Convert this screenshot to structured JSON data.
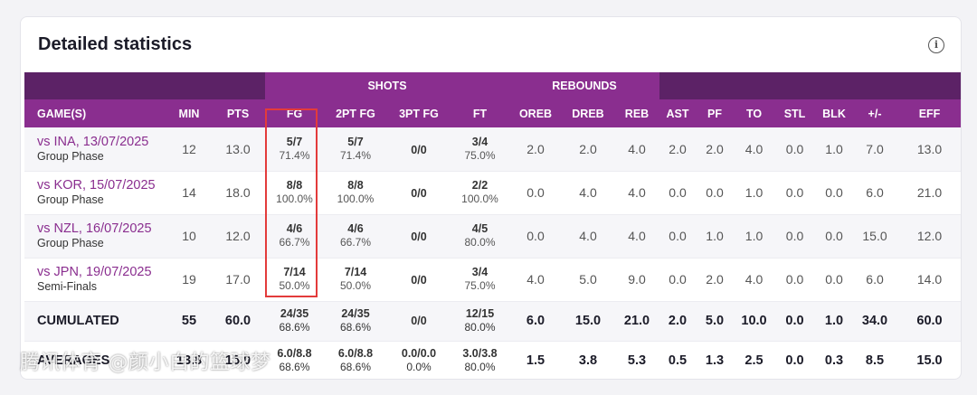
{
  "title": "Detailed statistics",
  "info_glyph": "i",
  "groups": {
    "shots": "SHOTS",
    "rebounds": "REBOUNDS"
  },
  "columns": [
    "GAME(S)",
    "MIN",
    "PTS",
    "FG",
    "2PT FG",
    "3PT FG",
    "FT",
    "OREB",
    "DREB",
    "REB",
    "AST",
    "PF",
    "TO",
    "STL",
    "BLK",
    "+/-",
    "EFF"
  ],
  "games": [
    {
      "name": "vs INA, 13/07/2025",
      "phase": "Group Phase",
      "min": "12",
      "pts": "13.0",
      "fg": "5/7",
      "fg_pct": "71.4%",
      "fg2": "5/7",
      "fg2_pct": "71.4%",
      "fg3": "0/0",
      "ft": "3/4",
      "ft_pct": "75.0%",
      "oreb": "2.0",
      "dreb": "2.0",
      "reb": "4.0",
      "ast": "2.0",
      "pf": "2.0",
      "to": "4.0",
      "stl": "0.0",
      "blk": "1.0",
      "pm": "7.0",
      "eff": "13.0"
    },
    {
      "name": "vs KOR, 15/07/2025",
      "phase": "Group Phase",
      "min": "14",
      "pts": "18.0",
      "fg": "8/8",
      "fg_pct": "100.0%",
      "fg2": "8/8",
      "fg2_pct": "100.0%",
      "fg3": "0/0",
      "ft": "2/2",
      "ft_pct": "100.0%",
      "oreb": "0.0",
      "dreb": "4.0",
      "reb": "4.0",
      "ast": "0.0",
      "pf": "0.0",
      "to": "1.0",
      "stl": "0.0",
      "blk": "0.0",
      "pm": "6.0",
      "eff": "21.0"
    },
    {
      "name": "vs NZL, 16/07/2025",
      "phase": "Group Phase",
      "min": "10",
      "pts": "12.0",
      "fg": "4/6",
      "fg_pct": "66.7%",
      "fg2": "4/6",
      "fg2_pct": "66.7%",
      "fg3": "0/0",
      "ft": "4/5",
      "ft_pct": "80.0%",
      "oreb": "0.0",
      "dreb": "4.0",
      "reb": "4.0",
      "ast": "0.0",
      "pf": "1.0",
      "to": "1.0",
      "stl": "0.0",
      "blk": "0.0",
      "pm": "15.0",
      "eff": "12.0"
    },
    {
      "name": "vs JPN, 19/07/2025",
      "phase": "Semi-Finals",
      "min": "19",
      "pts": "17.0",
      "fg": "7/14",
      "fg_pct": "50.0%",
      "fg2": "7/14",
      "fg2_pct": "50.0%",
      "fg3": "0/0",
      "ft": "3/4",
      "ft_pct": "75.0%",
      "oreb": "4.0",
      "dreb": "5.0",
      "reb": "9.0",
      "ast": "0.0",
      "pf": "2.0",
      "to": "4.0",
      "stl": "0.0",
      "blk": "0.0",
      "pm": "6.0",
      "eff": "14.0"
    }
  ],
  "cumulated": {
    "label": "CUMULATED",
    "min": "55",
    "pts": "60.0",
    "fg": "24/35",
    "fg_pct": "68.6%",
    "fg2": "24/35",
    "fg2_pct": "68.6%",
    "fg3": "0/0",
    "ft": "12/15",
    "ft_pct": "80.0%",
    "oreb": "6.0",
    "dreb": "15.0",
    "reb": "21.0",
    "ast": "2.0",
    "pf": "5.0",
    "to": "10.0",
    "stl": "0.0",
    "blk": "1.0",
    "pm": "34.0",
    "eff": "60.0"
  },
  "averages": {
    "label": "AVERAGES",
    "min": "13.8",
    "pts": "15.0",
    "fg": "6.0/8.8",
    "fg_pct": "68.6%",
    "fg2": "6.0/8.8",
    "fg2_pct": "68.6%",
    "fg3": "0.0/0.0",
    "fg3_pct": "0.0%",
    "ft": "3.0/3.8",
    "ft_pct": "80.0%",
    "oreb": "1.5",
    "dreb": "3.8",
    "reb": "5.3",
    "ast": "0.5",
    "pf": "1.3",
    "to": "2.5",
    "stl": "0.0",
    "blk": "0.3",
    "pm": "8.5",
    "eff": "15.0"
  },
  "watermark": "腾讯体育 @颜小白的篮球梦",
  "colors": {
    "header_dark": "#5c2266",
    "header_purple": "#8a2e8f",
    "link": "#8a2e8f",
    "highlight": "#e33b3b"
  }
}
